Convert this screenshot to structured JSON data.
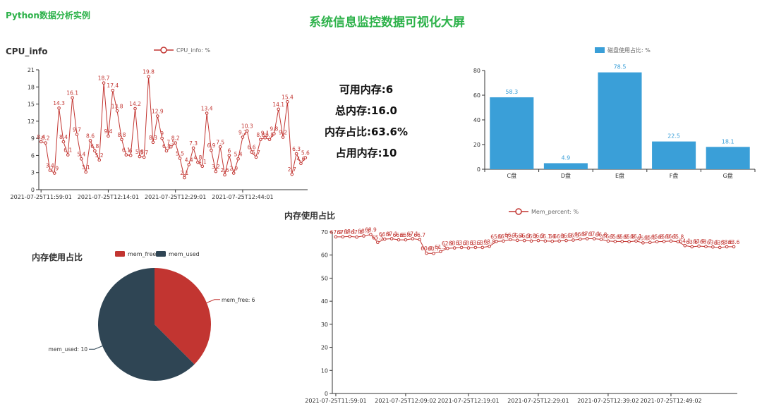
{
  "header": {
    "brand": "Python数据分析实例",
    "title": "系统信息监控数据可视化大屏"
  },
  "memory_stats": {
    "available": "可用内存:6",
    "total": "总内存:16.0",
    "ratio": "内存占比:63.6%",
    "used": "占用内存:10"
  },
  "chart_data": [
    {
      "id": "cpu",
      "type": "line",
      "title": "CPU_info",
      "legend": "CPU_info: %",
      "legend_position": "top",
      "color": "#c23531",
      "ylim": [
        0,
        21
      ],
      "y_ticks": [
        0,
        3,
        6,
        9,
        12,
        15,
        18,
        21
      ],
      "x_tick_labels": [
        "2021-07-25T11:59:01",
        "2021-07-25T12:14:01",
        "2021-07-25T12:29:01",
        "2021-07-25T12:44:01"
      ],
      "values": [
        8.4,
        8.2,
        3.4,
        2.9,
        14.3,
        8.4,
        6.1,
        16.1,
        9.7,
        5.4,
        3.1,
        8.6,
        6.8,
        5.2,
        18.7,
        9.4,
        17.4,
        13.8,
        8.8,
        6.1,
        6,
        14.2,
        5.8,
        5.7,
        19.8,
        8.3,
        12.9,
        9,
        6.8,
        7.5,
        8.2,
        5.5,
        2.1,
        4.4,
        7.3,
        4.8,
        4.1,
        13.4,
        6.9,
        3.2,
        7.5,
        2.6,
        6,
        2.9,
        5.4,
        9.2,
        10.3,
        6.6,
        5.7,
        8.8,
        9.1,
        8.8,
        9.8,
        14.1,
        9.2,
        15.4,
        2.7,
        6.3,
        4.6,
        5.6
      ]
    },
    {
      "id": "disk",
      "type": "bar",
      "legend": "磁盘使用占比: %",
      "legend_position": "top",
      "color": "#3a9fd8",
      "categories": [
        "C盘",
        "D盘",
        "E盘",
        "F盘",
        "G盘"
      ],
      "values": [
        58.3,
        4.9,
        78.5,
        22.5,
        18.1
      ],
      "ylim": [
        0,
        80
      ],
      "y_ticks": [
        0,
        20,
        40,
        60,
        80
      ]
    },
    {
      "id": "pie",
      "type": "pie",
      "title": "内存使用占比",
      "legend_position": "top",
      "slices": [
        {
          "name": "mem_free",
          "value": 6,
          "label": "mem_free: 6",
          "color": "#c23531"
        },
        {
          "name": "mem_used",
          "value": 10,
          "label": "mem_used: 10",
          "color": "#2f4554"
        }
      ]
    },
    {
      "id": "mem",
      "type": "line",
      "title": "内存使用占比",
      "legend": "Mem_percent: %",
      "legend_position": "top",
      "color": "#c23531",
      "ylim": [
        0,
        70
      ],
      "y_ticks": [
        0,
        10,
        20,
        30,
        40,
        50,
        60,
        70
      ],
      "x_tick_labels": [
        "2021-07-25T11:59:01",
        "2021-07-25T12:09:02",
        "2021-07-25T12:19:01",
        "2021-07-25T12:29:01",
        "2021-07-25T12:39:02",
        "2021-07-25T12:49:02"
      ],
      "values": [
        67.9,
        67.9,
        68.1,
        67.8,
        68.3,
        68.9,
        65.5,
        66.9,
        67.1,
        66.6,
        66.6,
        67.1,
        66.7,
        60.8,
        60.7,
        61.5,
        62.9,
        63.1,
        63.3,
        63.1,
        63.3,
        63.3,
        63.8,
        65.9,
        66.1,
        66.7,
        66.4,
        66.3,
        66.1,
        66.3,
        66.1,
        66.0,
        66.1,
        66.3,
        66.5,
        66.9,
        67.1,
        67.1,
        66.8,
        66.1,
        65.9,
        65.9,
        65.8,
        66.1,
        65.3,
        65.5,
        65.8,
        65.9,
        66.1,
        65.8,
        64.1,
        63.6,
        63.9,
        63.7,
        63.5,
        63.3,
        63.6,
        63.6
      ]
    }
  ]
}
